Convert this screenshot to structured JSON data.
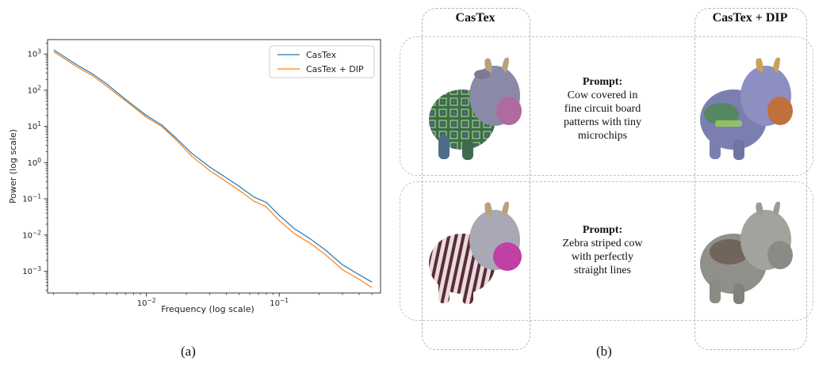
{
  "chart_data": {
    "type": "line",
    "xlabel": "Frequency (log scale)",
    "ylabel": "Power (log scale)",
    "xscale": "log",
    "yscale": "log",
    "xlim": [
      0.0018,
      0.58
    ],
    "ylim": [
      0.00025,
      2500
    ],
    "x_ticks": [
      {
        "value": 0.01,
        "base": "10",
        "exp": "−2"
      },
      {
        "value": 0.1,
        "base": "10",
        "exp": "−1"
      }
    ],
    "y_ticks": [
      {
        "value": 1000,
        "base": "10",
        "exp": "3"
      },
      {
        "value": 100,
        "base": "10",
        "exp": "2"
      },
      {
        "value": 10,
        "base": "10",
        "exp": "1"
      },
      {
        "value": 1,
        "base": "10",
        "exp": "0"
      },
      {
        "value": 0.1,
        "base": "10",
        "exp": "−1"
      },
      {
        "value": 0.01,
        "base": "10",
        "exp": "−2"
      },
      {
        "value": 0.001,
        "base": "10",
        "exp": "−3"
      }
    ],
    "legend_position": "top-right",
    "series": [
      {
        "name": "CasTex",
        "color": "#1f77b4",
        "x": [
          0.002,
          0.003,
          0.004,
          0.005,
          0.007,
          0.01,
          0.013,
          0.017,
          0.022,
          0.03,
          0.04,
          0.05,
          0.065,
          0.08,
          0.1,
          0.13,
          0.17,
          0.22,
          0.3,
          0.4,
          0.5
        ],
        "y": [
          1300,
          500,
          270,
          150,
          55,
          20,
          11,
          4.5,
          1.8,
          0.75,
          0.38,
          0.22,
          0.11,
          0.08,
          0.035,
          0.015,
          0.008,
          0.004,
          0.0015,
          0.0008,
          0.0005
        ]
      },
      {
        "name": "CasTex + DIP",
        "color": "#ff7f0e",
        "x": [
          0.002,
          0.003,
          0.004,
          0.005,
          0.007,
          0.01,
          0.013,
          0.017,
          0.022,
          0.03,
          0.04,
          0.05,
          0.065,
          0.08,
          0.1,
          0.13,
          0.17,
          0.22,
          0.3,
          0.4,
          0.5
        ],
        "y": [
          1150,
          440,
          240,
          130,
          50,
          18,
          10,
          4.0,
          1.5,
          0.6,
          0.3,
          0.17,
          0.085,
          0.06,
          0.025,
          0.011,
          0.006,
          0.003,
          0.0011,
          0.0006,
          0.00035
        ]
      }
    ]
  },
  "figure": {
    "caption_a": "(a)",
    "caption_b": "(b)",
    "col_titles": [
      "CasTex",
      "CasTex + DIP"
    ],
    "prompts": [
      {
        "title": "Prompt:",
        "lines": [
          "Cow covered in",
          "fine circuit board",
          "patterns with tiny",
          "microchips"
        ]
      },
      {
        "title": "Prompt:",
        "lines": [
          "Zebra striped cow",
          "with perfectly",
          "straight lines"
        ]
      }
    ]
  }
}
